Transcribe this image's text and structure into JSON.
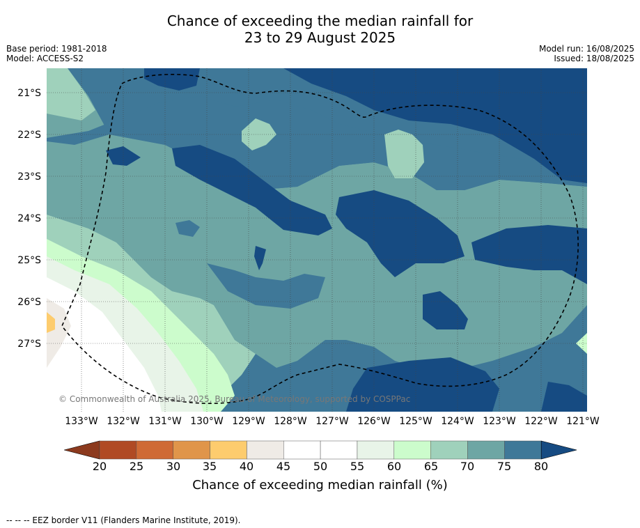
{
  "title_line1": "Chance of exceeding the median rainfall for",
  "title_line2": "23 to 29 August 2025",
  "meta": {
    "base_period": "Base period: 1981-2018",
    "model": "Model: ACCESS-S2",
    "model_run": "Model run: 16/08/2025",
    "issued": "Issued: 18/08/2025"
  },
  "lat_labels": [
    "21°S",
    "22°S",
    "23°S",
    "24°S",
    "25°S",
    "26°S",
    "27°S"
  ],
  "lon_labels": [
    "133°W",
    "132°W",
    "131°W",
    "130°W",
    "129°W",
    "128°W",
    "127°W",
    "126°W",
    "125°W",
    "124°W",
    "123°W",
    "122°W",
    "121°W"
  ],
  "copyright": "© Commonwealth of Australia 2025, Bureau of Meteorology, supported by COSPPac",
  "colorbar": {
    "ticks": [
      "20",
      "25",
      "30",
      "35",
      "40",
      "45",
      "50",
      "55",
      "60",
      "65",
      "70",
      "75",
      "80"
    ],
    "colors": [
      "#8c3a1e",
      "#b04a24",
      "#cf6a35",
      "#e0954a",
      "#fdcc6e",
      "#efebe6",
      "#ffffff",
      "#ffffff",
      "#e8f4e8",
      "#ccfccc",
      "#9fd1bb",
      "#6ea6a4",
      "#3f7898",
      "#164b82"
    ],
    "label": "Chance of exceeding median rainfall (%)"
  },
  "footnote": "--  --  -- EEZ border V11 (Flanders Marine Institute, 2019)."
}
